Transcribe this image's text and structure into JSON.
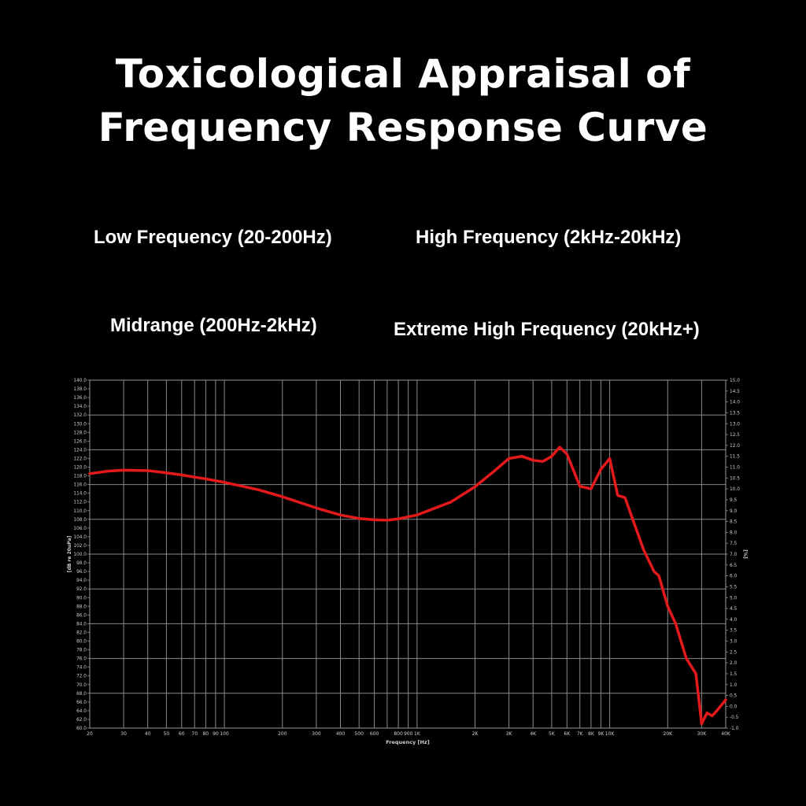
{
  "header": {
    "title_line1": "Toxicological Appraisal of",
    "title_line2": "Frequency Response Curve"
  },
  "bands": {
    "low": "Low Frequency (20-200Hz)",
    "high": "High Frequency (2kHz-20kHz)",
    "mid": "Midrange (200Hz-2kHz)",
    "extreme": "Extreme High Frequency (20kHz+)"
  },
  "colors": {
    "background": "#000000",
    "grid": "#8a8a8a",
    "curve": "#e3191c",
    "text": "#ffffff"
  },
  "chart_data": {
    "type": "line",
    "title": "",
    "xlabel": "Frequency [Hz]",
    "ylabel": "[dB re 20uPa]",
    "y2label": "[%]",
    "xscale": "log",
    "xlim": [
      20,
      40000
    ],
    "ylim": [
      60,
      140
    ],
    "y2lim": [
      -1,
      15
    ],
    "grid": true,
    "x_ticks": [
      20,
      30,
      40,
      50,
      60,
      70,
      80,
      90,
      100,
      200,
      300,
      400,
      500,
      600,
      700,
      800,
      900,
      1000,
      2000,
      3000,
      4000,
      5000,
      6000,
      7000,
      8000,
      9000,
      10000,
      20000,
      30000,
      40000
    ],
    "x_tick_labels": [
      "20",
      "30",
      "40",
      "50",
      "60",
      "70",
      "80",
      "90",
      "100",
      "200",
      "300",
      "400",
      "500",
      "600",
      "",
      "800",
      "900",
      "1K",
      "2K",
      "3K",
      "4K",
      "5K",
      "6K",
      "7K",
      "8K",
      "9K",
      "10K",
      "20K",
      "30K",
      "40K"
    ],
    "y_ticks": [
      60,
      62,
      64,
      66,
      68,
      70,
      72,
      74,
      76,
      78,
      80,
      82,
      84,
      86,
      88,
      90,
      92,
      94,
      96,
      98,
      100,
      102,
      104,
      106,
      108,
      110,
      112,
      114,
      116,
      118,
      120,
      122,
      124,
      126,
      128,
      130,
      132,
      134,
      136,
      138,
      140
    ],
    "y_tick_labels": [
      "60.0",
      "62.0",
      "64.0",
      "66.0",
      "68.0",
      "70.0",
      "72.0",
      "74.0",
      "76.0",
      "78.0",
      "80.0",
      "82.0",
      "84.0",
      "86.0",
      "88.0",
      "90.0",
      "92.0",
      "94.0",
      "96.0",
      "98.0",
      "100.0",
      "102.0",
      "104.0",
      "106.0",
      "108.0",
      "110.0",
      "112.0",
      "114.0",
      "116.0",
      "118.0",
      "120.0",
      "122.0",
      "124.0",
      "126.0",
      "128.0",
      "130.0",
      "132.0",
      "134.0",
      "136.0",
      "138.0",
      "140.0"
    ],
    "y2_ticks": [
      -1,
      -0.5,
      0,
      0.5,
      1,
      1.5,
      2,
      2.5,
      3,
      3.5,
      4,
      4.5,
      5,
      5.5,
      6,
      6.5,
      7,
      7.5,
      8,
      8.5,
      9,
      9.5,
      10,
      10.5,
      11,
      11.5,
      12,
      12.5,
      13,
      13.5,
      14,
      14.5,
      15
    ],
    "y2_tick_labels": [
      "-1.0",
      "-0.5",
      "0.0",
      "0.5",
      "1.0",
      "1.5",
      "2.0",
      "2.5",
      "3.0",
      "3.5",
      "4.0",
      "4.5",
      "5.0",
      "5.5",
      "6.0",
      "6.5",
      "7.0",
      "7.5",
      "8.0",
      "8.5",
      "9.0",
      "9.5",
      "10.0",
      "10.5",
      "11.0",
      "11.5",
      "12.0",
      "12.5",
      "13.0",
      "13.5",
      "14.0",
      "14.5",
      "15.0"
    ],
    "series": [
      {
        "x": [
          20,
          25,
          30,
          40,
          50,
          60,
          70,
          80,
          100,
          150,
          200,
          300,
          400,
          500,
          600,
          700,
          800,
          1000,
          1500,
          2000,
          2500,
          3000,
          3500,
          4000,
          4500,
          5000,
          5500,
          6000,
          7000,
          8000,
          9000,
          10000,
          11000,
          12000,
          15000,
          17000,
          18000,
          20000,
          22000,
          25000,
          28000,
          30000,
          32000,
          34000,
          36000,
          40000
        ],
        "y": [
          118.5,
          119.1,
          119.3,
          119.2,
          118.7,
          118.2,
          117.7,
          117.3,
          116.5,
          114.8,
          113.2,
          110.6,
          109.0,
          108.2,
          107.9,
          107.8,
          108.1,
          109.0,
          112.0,
          115.5,
          119.0,
          122.0,
          122.5,
          121.6,
          121.3,
          122.5,
          124.6,
          123.0,
          115.6,
          115.0,
          119.5,
          122.0,
          113.5,
          113.0,
          101.0,
          96.0,
          95.0,
          88.0,
          84.0,
          76.0,
          72.5,
          61.0,
          63.5,
          62.8,
          64.0,
          66.5
        ]
      }
    ]
  }
}
